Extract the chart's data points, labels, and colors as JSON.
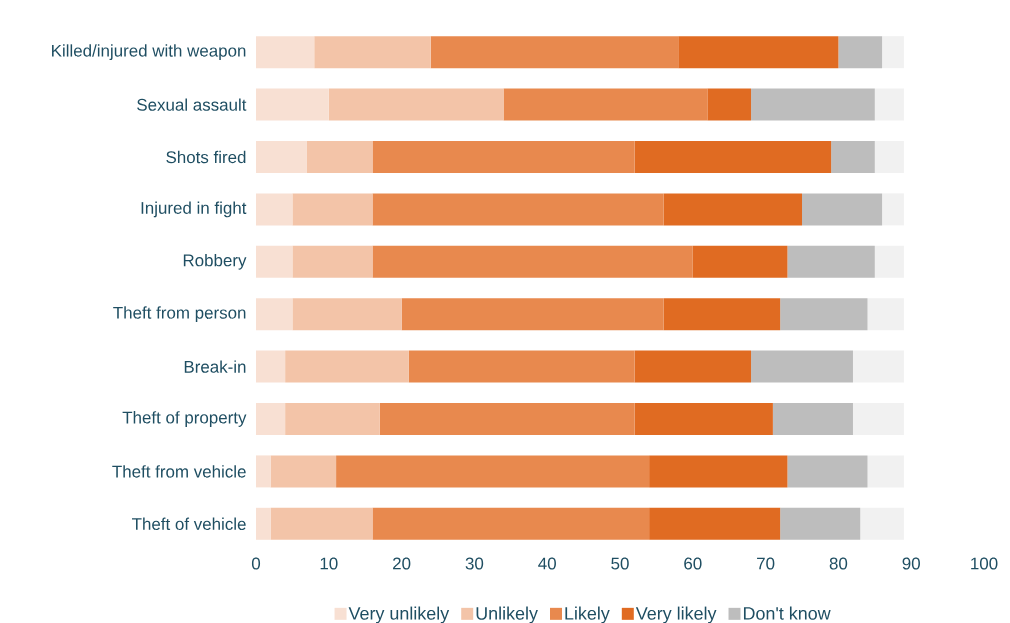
{
  "chart_data": {
    "type": "bar",
    "orientation": "horizontal",
    "stacked": true,
    "categories": [
      "Killed/injured with weapon",
      "Sexual assault",
      "Shots fired",
      "Injured in fight",
      "Robbery",
      "Theft from person",
      "Break-in",
      "Theft of property",
      "Theft from vehicle",
      "Theft of vehicle"
    ],
    "series": [
      {
        "name": "Very unlikely",
        "color": "#f8e0d3",
        "values": [
          8,
          10,
          7,
          5,
          5,
          5,
          4,
          4,
          2,
          2
        ]
      },
      {
        "name": "Unlikely",
        "color": "#f3c4a8",
        "values": [
          16,
          24,
          9,
          11,
          11,
          15,
          17,
          13,
          9,
          14
        ]
      },
      {
        "name": "Likely",
        "color": "#e8894e",
        "values": [
          34,
          28,
          36,
          40,
          44,
          36,
          31,
          35,
          43,
          38
        ]
      },
      {
        "name": "Very likely",
        "color": "#e06b22",
        "values": [
          22,
          6,
          27,
          19,
          13,
          16,
          16,
          19,
          19,
          18
        ]
      },
      {
        "name": "Don't know",
        "color": "#bdbdbd",
        "values": [
          6,
          17,
          6,
          11,
          12,
          12,
          14,
          11,
          11,
          11
        ]
      },
      {
        "color": "#f1f1f1",
        "values": [
          3,
          4,
          4,
          3,
          4,
          5,
          7,
          7,
          5,
          6
        ]
      }
    ],
    "xlim": [
      0,
      100
    ],
    "xticks": [
      0,
      10,
      20,
      30,
      40,
      50,
      60,
      70,
      80,
      90,
      100
    ],
    "grid": false,
    "legend": "bottom"
  }
}
